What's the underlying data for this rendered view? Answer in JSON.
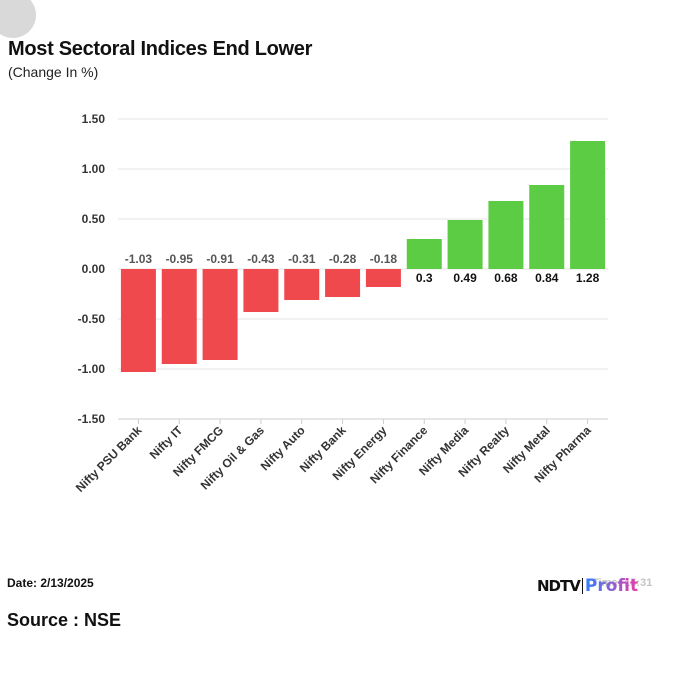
{
  "header": {
    "title": "Most Sectoral Indices End Lower",
    "subtitle": "(Change In %)"
  },
  "footer": {
    "date": "Date: 2/13/2025",
    "time": "Time: 15:31",
    "source": "Source : NSE",
    "logo": "NDTV Profit"
  },
  "colors": {
    "negative": "#f0494d",
    "positive": "#5ccc44"
  },
  "chart_data": {
    "type": "bar",
    "title": "Most Sectoral Indices End Lower",
    "ylabel": "Change In %",
    "categories": [
      "Nifty PSU Bank",
      "Nifty IT",
      "Nifty FMCG",
      "Nifty Oil & Gas",
      "Nifty Auto",
      "Nifty Bank",
      "Nifty Energy",
      "Nifty Finance",
      "Nifty Media",
      "Nifty Realty",
      "Nifty Metal",
      "Nifty Pharma"
    ],
    "values": [
      -1.03,
      -0.95,
      -0.91,
      -0.43,
      -0.31,
      -0.28,
      -0.18,
      0.3,
      0.49,
      0.68,
      0.84,
      1.28
    ],
    "labels": [
      "-1.03",
      "-0.95",
      "-0.91",
      "-0.43",
      "-0.31",
      "-0.28",
      "-0.18",
      "0.3",
      "0.49",
      "0.68",
      "0.84",
      "1.28"
    ],
    "yticks": [
      "1.50",
      "1.00",
      "0.50",
      "0.00",
      "-0.50",
      "-1.00",
      "-1.50"
    ],
    "ylim": [
      -1.5,
      1.5
    ],
    "grid": true
  }
}
